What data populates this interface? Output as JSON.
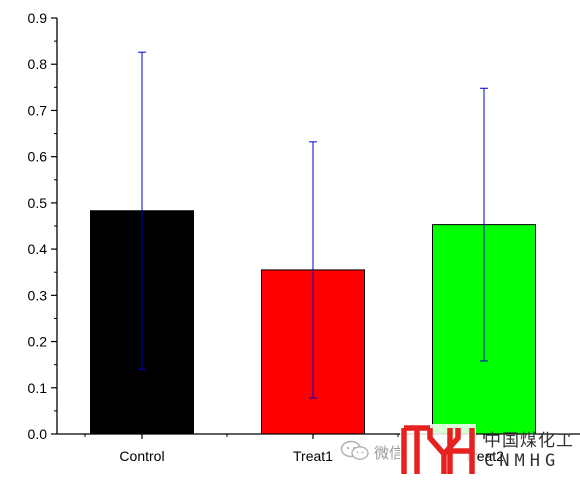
{
  "chart_data": {
    "type": "bar",
    "categories": [
      "Control",
      "Treat1",
      "Treat2"
    ],
    "values": [
      0.483,
      0.355,
      0.453
    ],
    "errors": [
      0.343,
      0.277,
      0.295
    ],
    "bar_colors": [
      "#000000",
      "#ff0000",
      "#00ff00"
    ],
    "error_color": "#0000cc",
    "ylim": [
      0,
      0.9
    ],
    "yticks": [
      "0.0",
      "0.1",
      "0.2",
      "0.3",
      "0.4",
      "0.5",
      "0.6",
      "0.7",
      "0.8",
      "0.9"
    ],
    "title": "",
    "xlabel": "",
    "ylabel": "",
    "grid": false
  },
  "watermark": {
    "wechat_icon": "wechat-icon",
    "wechat_text": "微信",
    "brand_cn": "中国煤化工",
    "brand_en": "CNMHG",
    "brand_color": "#e5221f"
  }
}
